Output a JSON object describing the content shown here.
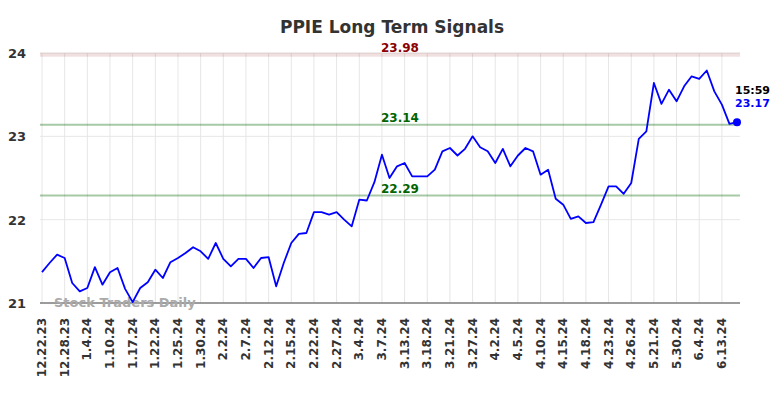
{
  "chart_data": {
    "type": "line",
    "title": "PPIE Long Term Signals",
    "categories": [
      "12.22.23",
      null,
      null,
      "12.28.23",
      null,
      null,
      "1.4.24",
      null,
      null,
      "1.10.24",
      null,
      null,
      "1.17.24",
      null,
      null,
      "1.22.24",
      null,
      null,
      "1.25.24",
      null,
      null,
      "1.30.24",
      null,
      null,
      "2.2.24",
      null,
      null,
      "2.7.24",
      null,
      null,
      "2.12.24",
      null,
      null,
      "2.15.24",
      null,
      null,
      "2.22.24",
      null,
      null,
      "2.27.24",
      null,
      null,
      "3.4.24",
      null,
      null,
      "3.7.24",
      null,
      null,
      "3.13.24",
      null,
      null,
      "3.18.24",
      null,
      null,
      "3.21.24",
      null,
      null,
      "3.27.24",
      null,
      null,
      "4.2.24",
      null,
      null,
      "4.5.24",
      null,
      null,
      "4.10.24",
      null,
      null,
      "4.15.24",
      null,
      null,
      "4.18.24",
      null,
      null,
      "4.23.24",
      null,
      null,
      "4.26.24",
      null,
      null,
      "5.21.24",
      null,
      null,
      "5.30.24",
      null,
      null,
      "6.4.24",
      null,
      null,
      "6.13.24",
      null,
      null
    ],
    "values": [
      21.37,
      21.48,
      21.58,
      21.54,
      21.24,
      21.14,
      21.18,
      21.43,
      21.22,
      21.37,
      21.42,
      21.17,
      21.01,
      21.18,
      21.25,
      21.4,
      21.3,
      21.49,
      21.54,
      21.6,
      21.67,
      21.62,
      21.53,
      21.72,
      21.53,
      21.44,
      21.53,
      21.53,
      21.42,
      21.54,
      21.55,
      21.2,
      21.48,
      21.72,
      21.83,
      21.84,
      22.09,
      22.09,
      22.06,
      22.09,
      22.0,
      21.92,
      22.24,
      22.23,
      22.45,
      22.78,
      22.5,
      22.64,
      22.68,
      22.52,
      22.52,
      22.52,
      22.6,
      22.82,
      22.86,
      22.77,
      22.85,
      23.0,
      22.87,
      22.82,
      22.68,
      22.85,
      22.64,
      22.77,
      22.86,
      22.82,
      22.54,
      22.6,
      22.25,
      22.18,
      22.01,
      22.04,
      21.96,
      21.97,
      22.18,
      22.4,
      22.4,
      22.31,
      22.44,
      22.97,
      23.06,
      23.64,
      23.39,
      23.56,
      23.42,
      23.6,
      23.72,
      23.69,
      23.79,
      23.54,
      23.38,
      23.15,
      23.17
    ],
    "color": "#0000ff",
    "ylim": [
      21,
      24
    ],
    "yticks": [
      21,
      22,
      23,
      24
    ],
    "grid": true,
    "reference_lines": [
      {
        "value": 23.98,
        "label": "23.98",
        "color": "#8b0000"
      },
      {
        "value": 23.14,
        "label": "23.14",
        "color": "#006400"
      },
      {
        "value": 22.29,
        "label": "22.29",
        "color": "#006400"
      }
    ],
    "annotations": [
      {
        "text": "15:59"
      },
      {
        "text": "23.17"
      },
      {
        "text": "Stock Traders Daily"
      }
    ]
  }
}
